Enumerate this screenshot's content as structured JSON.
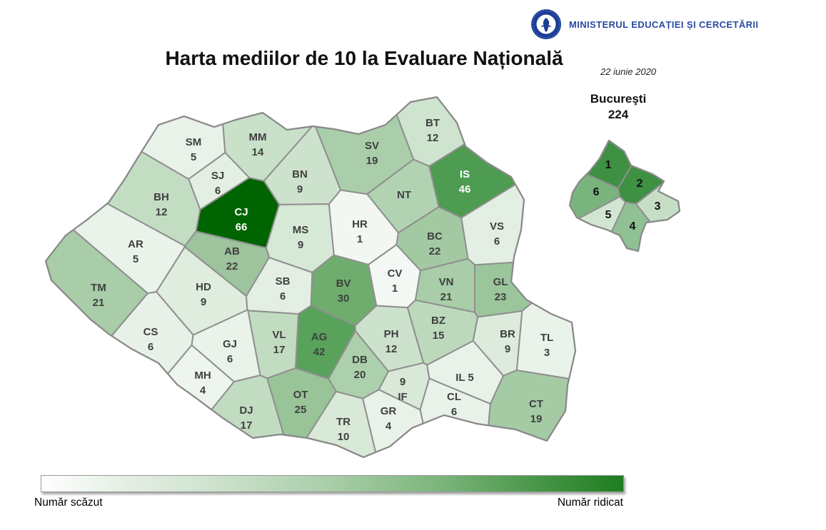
{
  "header": {
    "ministry": "MINISTERUL EDUCAȚIEI ȘI CERCETĂRII"
  },
  "colors": {
    "border": "#8f8f8f",
    "country_outline": "#8a8a8a",
    "label_dark": "#3f3f3f",
    "label_light": "#ffffff",
    "ministry_blue": "#2b4aa3",
    "legend_low": "#ffffff",
    "legend_high": "#1e7d1e"
  },
  "chart_data": {
    "type": "choropleth",
    "title": "Harta mediilor de 10 la Evaluare Națională",
    "date": "22 iunie 2020",
    "legend": {
      "low": "Număr scăzut",
      "high": "Număr ridicat"
    },
    "regions": [
      {
        "code": "SM",
        "value": 5,
        "fill": "#e8f2e8",
        "text": "dark"
      },
      {
        "code": "MM",
        "value": 14,
        "fill": "#c9e0c9",
        "text": "dark"
      },
      {
        "code": "BT",
        "value": 12,
        "fill": "#cfe4cf",
        "text": "dark"
      },
      {
        "code": "SV",
        "value": 19,
        "fill": "#a9cea9",
        "text": "dark"
      },
      {
        "code": "BN",
        "value": 9,
        "fill": "#cde2cd",
        "text": "dark"
      },
      {
        "code": "SJ",
        "value": 6,
        "fill": "#e3efe3",
        "text": "dark"
      },
      {
        "code": "BH",
        "value": 12,
        "fill": "#c3ddc3",
        "text": "dark"
      },
      {
        "code": "CJ",
        "value": 66,
        "fill": "#006400",
        "text": "light"
      },
      {
        "code": "IS",
        "value": 46,
        "fill": "#4e9b52",
        "text": "light"
      },
      {
        "code": "NT",
        "value": null,
        "fill": "#b2d3b2",
        "text": "dark"
      },
      {
        "code": "MS",
        "value": 9,
        "fill": "#d6e8d6",
        "text": "dark"
      },
      {
        "code": "HR",
        "value": 1,
        "fill": "#f2f7f2",
        "text": "dark"
      },
      {
        "code": "VS",
        "value": 6,
        "fill": "#e3efe3",
        "text": "dark"
      },
      {
        "code": "BC",
        "value": 22,
        "fill": "#a3c9a3",
        "text": "dark"
      },
      {
        "code": "AR",
        "value": 5,
        "fill": "#eaf3ea",
        "text": "dark"
      },
      {
        "code": "AB",
        "value": 22,
        "fill": "#9dc49d",
        "text": "dark"
      },
      {
        "code": "CV",
        "value": 1,
        "fill": "#f4f8f4",
        "text": "dark"
      },
      {
        "code": "TM",
        "value": 21,
        "fill": "#a8cda8",
        "text": "dark"
      },
      {
        "code": "HD",
        "value": 9,
        "fill": "#dfeddf",
        "text": "dark"
      },
      {
        "code": "SB",
        "value": 6,
        "fill": "#e4efe4",
        "text": "dark"
      },
      {
        "code": "BV",
        "value": 30,
        "fill": "#6ead6e",
        "text": "dark"
      },
      {
        "code": "VN",
        "value": 21,
        "fill": "#a8cda8",
        "text": "dark"
      },
      {
        "code": "GL",
        "value": 23,
        "fill": "#9bc59b",
        "text": "dark"
      },
      {
        "code": "CS",
        "value": 6,
        "fill": "#e7f1e7",
        "text": "dark"
      },
      {
        "code": "GJ",
        "value": 6,
        "fill": "#eaf3ea",
        "text": "dark"
      },
      {
        "code": "VL",
        "value": 17,
        "fill": "#c2dcc2",
        "text": "dark"
      },
      {
        "code": "AG",
        "value": 42,
        "fill": "#58a25c",
        "text": "dark"
      },
      {
        "code": "PH",
        "value": 12,
        "fill": "#cde2cd",
        "text": "dark"
      },
      {
        "code": "BZ",
        "value": 15,
        "fill": "#bcd9bc",
        "text": "dark"
      },
      {
        "code": "BR",
        "value": 9,
        "fill": "#dcebdc",
        "text": "dark"
      },
      {
        "code": "TL",
        "value": 3,
        "fill": "#eaf3ea",
        "text": "dark"
      },
      {
        "code": "MH",
        "value": 4,
        "fill": "#eef5ee",
        "text": "dark"
      },
      {
        "code": "DB",
        "value": 20,
        "fill": "#abd0ab",
        "text": "dark"
      },
      {
        "code": "IL",
        "value": 5,
        "fill": "#e9f2e9",
        "text": "dark"
      },
      {
        "code": "IF",
        "value": 9,
        "fill": "#d8e9d8",
        "text": "dark"
      },
      {
        "code": "CL",
        "value": 6,
        "fill": "#e9f2e9",
        "text": "dark"
      },
      {
        "code": "CT",
        "value": 19,
        "fill": "#a5cba5",
        "text": "dark"
      },
      {
        "code": "DJ",
        "value": 17,
        "fill": "#c2dcc2",
        "text": "dark"
      },
      {
        "code": "OT",
        "value": 25,
        "fill": "#98c498",
        "text": "dark"
      },
      {
        "code": "TR",
        "value": 10,
        "fill": "#d8e9d8",
        "text": "dark"
      },
      {
        "code": "GR",
        "value": 4,
        "fill": "#e9f2e9",
        "text": "dark"
      }
    ],
    "bucharest": {
      "label": "Bucureşti",
      "value": 224,
      "sectors": [
        {
          "label": "1",
          "fill": "#3e9043"
        },
        {
          "label": "2",
          "fill": "#3e9043"
        },
        {
          "label": "3",
          "fill": "#c6dec6"
        },
        {
          "label": "4",
          "fill": "#90c194"
        },
        {
          "label": "5",
          "fill": "#d2e5d2"
        },
        {
          "label": "6",
          "fill": "#79b47c"
        }
      ]
    }
  }
}
